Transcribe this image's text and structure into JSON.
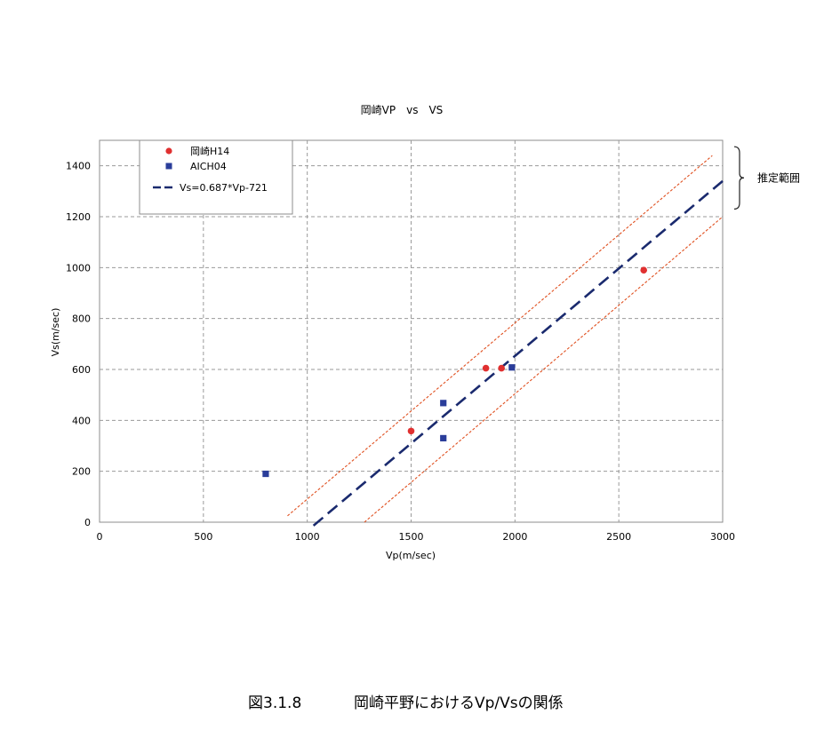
{
  "chart_data": {
    "type": "scatter",
    "title": "岡崎VP　vs　VS",
    "xlabel": "Vp(m/sec)",
    "ylabel": "Vs(m/sec)",
    "xlim": [
      0,
      3000
    ],
    "ylim": [
      0,
      1500
    ],
    "x_ticks": [
      0,
      500,
      1000,
      1500,
      2000,
      2500,
      3000
    ],
    "y_ticks": [
      0,
      200,
      400,
      600,
      800,
      1000,
      1200,
      1400
    ],
    "grid": true,
    "legend_position": "top-left",
    "series": [
      {
        "name": "岡崎H14",
        "marker": "circle",
        "color": "#e03030",
        "points": [
          [
            1500,
            358
          ],
          [
            1860,
            605
          ],
          [
            1935,
            605
          ],
          [
            2620,
            990
          ]
        ]
      },
      {
        "name": "AICH04",
        "marker": "square",
        "color": "#2a3d9a",
        "points": [
          [
            800,
            190
          ],
          [
            1655,
            468
          ],
          [
            1655,
            330
          ],
          [
            1985,
            608
          ]
        ]
      }
    ],
    "fit_line": {
      "name": "Vs=0.687*Vp-721",
      "slope": 0.687,
      "intercept": -721,
      "x_range": [
        1030,
        3000
      ],
      "color": "#1a2a6e",
      "style": "dashed"
    },
    "bounds": {
      "color": "#e05020",
      "style": "dotted",
      "upper": {
        "from": [
          905,
          25
        ],
        "to": [
          2950,
          1440
        ]
      },
      "lower": {
        "from": [
          1275,
          0
        ],
        "to": [
          3000,
          1200
        ]
      }
    },
    "range_annotation": {
      "text": "推定範囲",
      "y_from": 1475,
      "y_to": 1230
    }
  },
  "caption": {
    "figure_number": "図3.1.8",
    "text": "岡崎平野におけるVp/Vsの関係"
  }
}
